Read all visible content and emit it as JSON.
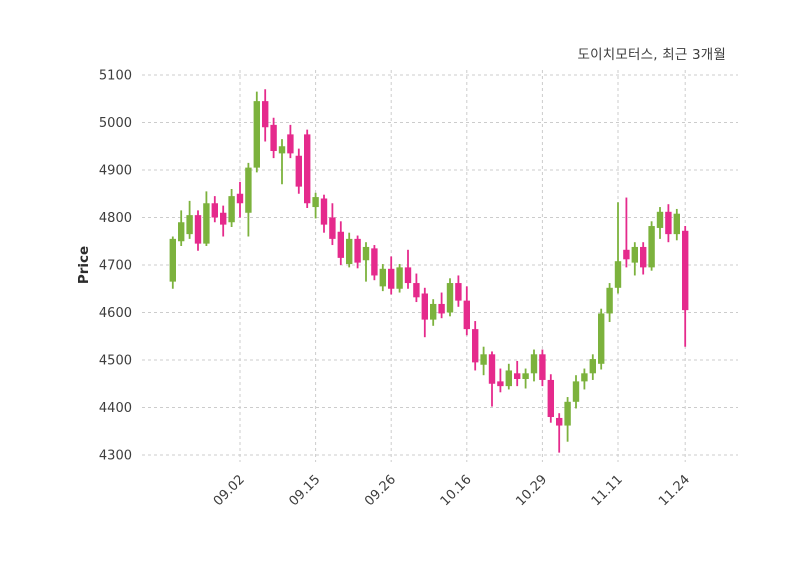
{
  "chart_data": {
    "type": "candlestick",
    "title": "도이치모터스, 최근 3개월",
    "ylabel": "Price",
    "ylim": [
      4300,
      5100
    ],
    "yticks": [
      4300,
      4400,
      4500,
      4600,
      4700,
      4800,
      4900,
      5000,
      5100
    ],
    "x_ticks": [
      {
        "index": 8,
        "label": "09.02"
      },
      {
        "index": 17,
        "label": "09.15"
      },
      {
        "index": 26,
        "label": "09.26"
      },
      {
        "index": 35,
        "label": "10.16"
      },
      {
        "index": 44,
        "label": "10.29"
      },
      {
        "index": 53,
        "label": "11.11"
      },
      {
        "index": 61,
        "label": "11.24"
      }
    ],
    "grid": true,
    "up_color": "#7cb23d",
    "down_color": "#e52a8c",
    "candles": [
      [
        4665,
        4760,
        4650,
        4755
      ],
      [
        4750,
        4815,
        4740,
        4790
      ],
      [
        4765,
        4835,
        4755,
        4805
      ],
      [
        4805,
        4815,
        4730,
        4745
      ],
      [
        4745,
        4855,
        4740,
        4830
      ],
      [
        4830,
        4845,
        4790,
        4800
      ],
      [
        4810,
        4825,
        4760,
        4785
      ],
      [
        4790,
        4860,
        4780,
        4845
      ],
      [
        4850,
        4875,
        4800,
        4830
      ],
      [
        4810,
        4915,
        4760,
        4905
      ],
      [
        4905,
        5065,
        4895,
        5045
      ],
      [
        5045,
        5070,
        4960,
        4990
      ],
      [
        4995,
        5010,
        4925,
        4940
      ],
      [
        4935,
        4965,
        4870,
        4950
      ],
      [
        4975,
        4995,
        4925,
        4935
      ],
      [
        4930,
        4945,
        4850,
        4865
      ],
      [
        4975,
        4985,
        4820,
        4830
      ],
      [
        4822,
        4852,
        4798,
        4843
      ],
      [
        4840,
        4848,
        4768,
        4785
      ],
      [
        4800,
        4830,
        4742,
        4755
      ],
      [
        4770,
        4792,
        4700,
        4715
      ],
      [
        4702,
        4768,
        4695,
        4755
      ],
      [
        4755,
        4762,
        4693,
        4705
      ],
      [
        4710,
        4748,
        4665,
        4738
      ],
      [
        4735,
        4742,
        4668,
        4678
      ],
      [
        4655,
        4702,
        4645,
        4692
      ],
      [
        4692,
        4718,
        4638,
        4650
      ],
      [
        4650,
        4702,
        4642,
        4695
      ],
      [
        4695,
        4732,
        4650,
        4662
      ],
      [
        4662,
        4682,
        4622,
        4632
      ],
      [
        4640,
        4652,
        4548,
        4585
      ],
      [
        4585,
        4628,
        4572,
        4618
      ],
      [
        4618,
        4642,
        4588,
        4598
      ],
      [
        4600,
        4672,
        4592,
        4662
      ],
      [
        4662,
        4678,
        4612,
        4625
      ],
      [
        4625,
        4655,
        4552,
        4565
      ],
      [
        4565,
        4582,
        4478,
        4495
      ],
      [
        4490,
        4528,
        4468,
        4512
      ],
      [
        4512,
        4518,
        4402,
        4450
      ],
      [
        4455,
        4482,
        4432,
        4445
      ],
      [
        4445,
        4492,
        4438,
        4478
      ],
      [
        4472,
        4498,
        4445,
        4460
      ],
      [
        4460,
        4482,
        4440,
        4472
      ],
      [
        4472,
        4522,
        4455,
        4512
      ],
      [
        4512,
        4522,
        4445,
        4458
      ],
      [
        4458,
        4470,
        4368,
        4380
      ],
      [
        4378,
        4388,
        4305,
        4362
      ],
      [
        4362,
        4422,
        4328,
        4412
      ],
      [
        4412,
        4468,
        4398,
        4455
      ],
      [
        4455,
        4482,
        4438,
        4472
      ],
      [
        4472,
        4512,
        4458,
        4502
      ],
      [
        4492,
        4608,
        4480,
        4598
      ],
      [
        4598,
        4662,
        4580,
        4652
      ],
      [
        4652,
        4832,
        4640,
        4708
      ],
      [
        4732,
        4842,
        4695,
        4712
      ],
      [
        4705,
        4748,
        4678,
        4738
      ],
      [
        4738,
        4748,
        4680,
        4695
      ],
      [
        4695,
        4792,
        4688,
        4782
      ],
      [
        4778,
        4822,
        4755,
        4812
      ],
      [
        4812,
        4828,
        4748,
        4765
      ],
      [
        4765,
        4818,
        4752,
        4808
      ],
      [
        4772,
        4782,
        4528,
        4605
      ]
    ]
  }
}
